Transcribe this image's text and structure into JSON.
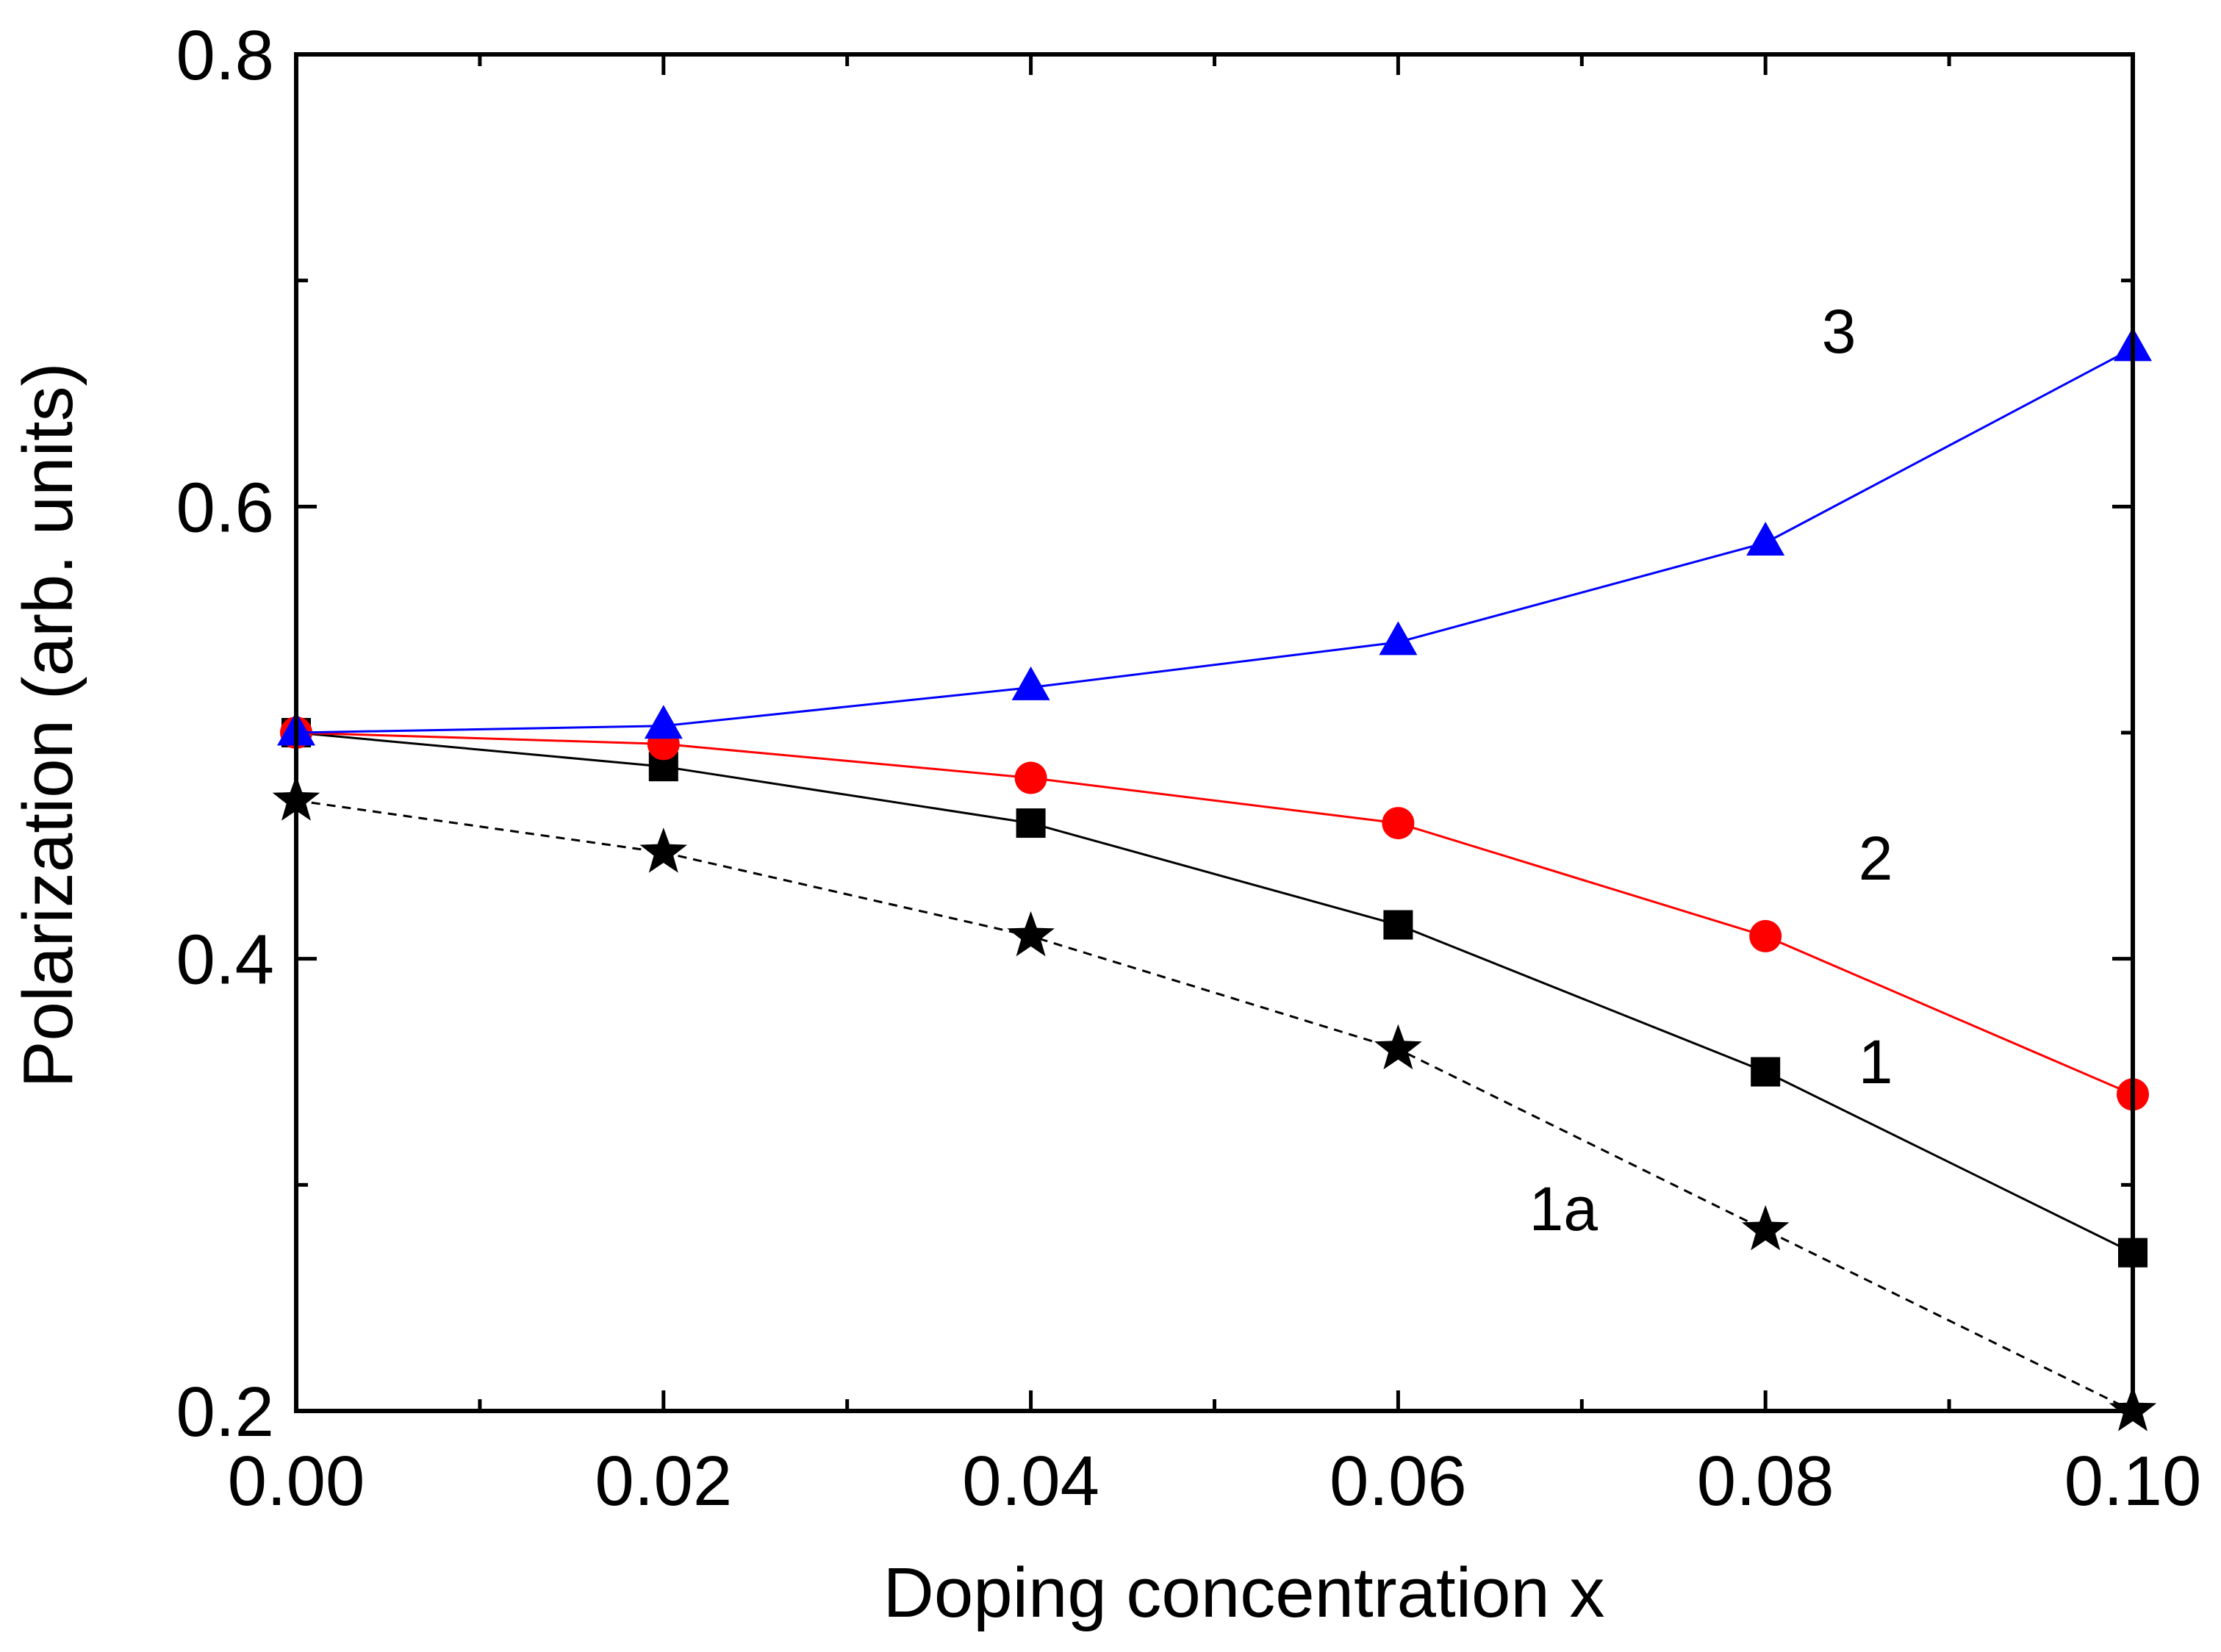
{
  "chart_data": {
    "type": "line",
    "title": "",
    "xlabel": "Doping concentration x",
    "ylabel": "Polarization (arb. units)",
    "xlim": [
      0.0,
      0.1
    ],
    "ylim": [
      0.2,
      0.8
    ],
    "x_major_ticks": [
      0.0,
      0.02,
      0.04,
      0.06,
      0.08,
      0.1
    ],
    "x_tick_labels": [
      "0.00",
      "0.02",
      "0.04",
      "0.06",
      "0.08",
      "0.10"
    ],
    "x_minor_ticks": [
      0.01,
      0.03,
      0.05,
      0.07,
      0.09
    ],
    "y_major_ticks": [
      0.2,
      0.4,
      0.6,
      0.8
    ],
    "y_tick_labels": [
      "0.2",
      "0.4",
      "0.6",
      "0.8"
    ],
    "y_minor_ticks": [
      0.3,
      0.5,
      0.7
    ],
    "grid": false,
    "x": [
      0.0,
      0.02,
      0.04,
      0.06,
      0.08,
      0.1
    ],
    "series": [
      {
        "name": "3",
        "label": "3",
        "color": "#0000ff",
        "marker": "triangle",
        "line_style": "solid",
        "values": [
          0.5,
          0.503,
          0.52,
          0.54,
          0.584,
          0.67
        ],
        "label_position": [
          0.084,
          0.668
        ]
      },
      {
        "name": "2",
        "label": "2",
        "color": "#ff0000",
        "marker": "circle",
        "line_style": "solid",
        "values": [
          0.5,
          0.495,
          0.48,
          0.46,
          0.41,
          0.34
        ],
        "label_position": [
          0.086,
          0.435
        ]
      },
      {
        "name": "1",
        "label": "1",
        "color": "#000000",
        "marker": "square",
        "line_style": "solid",
        "values": [
          0.5,
          0.485,
          0.46,
          0.415,
          0.35,
          0.27
        ],
        "label_position": [
          0.086,
          0.345
        ]
      },
      {
        "name": "1a",
        "label": "1a",
        "color": "#000000",
        "marker": "star",
        "line_style": "dashed",
        "values": [
          0.47,
          0.447,
          0.41,
          0.36,
          0.28,
          0.2
        ],
        "label_position": [
          0.069,
          0.28
        ]
      }
    ]
  }
}
